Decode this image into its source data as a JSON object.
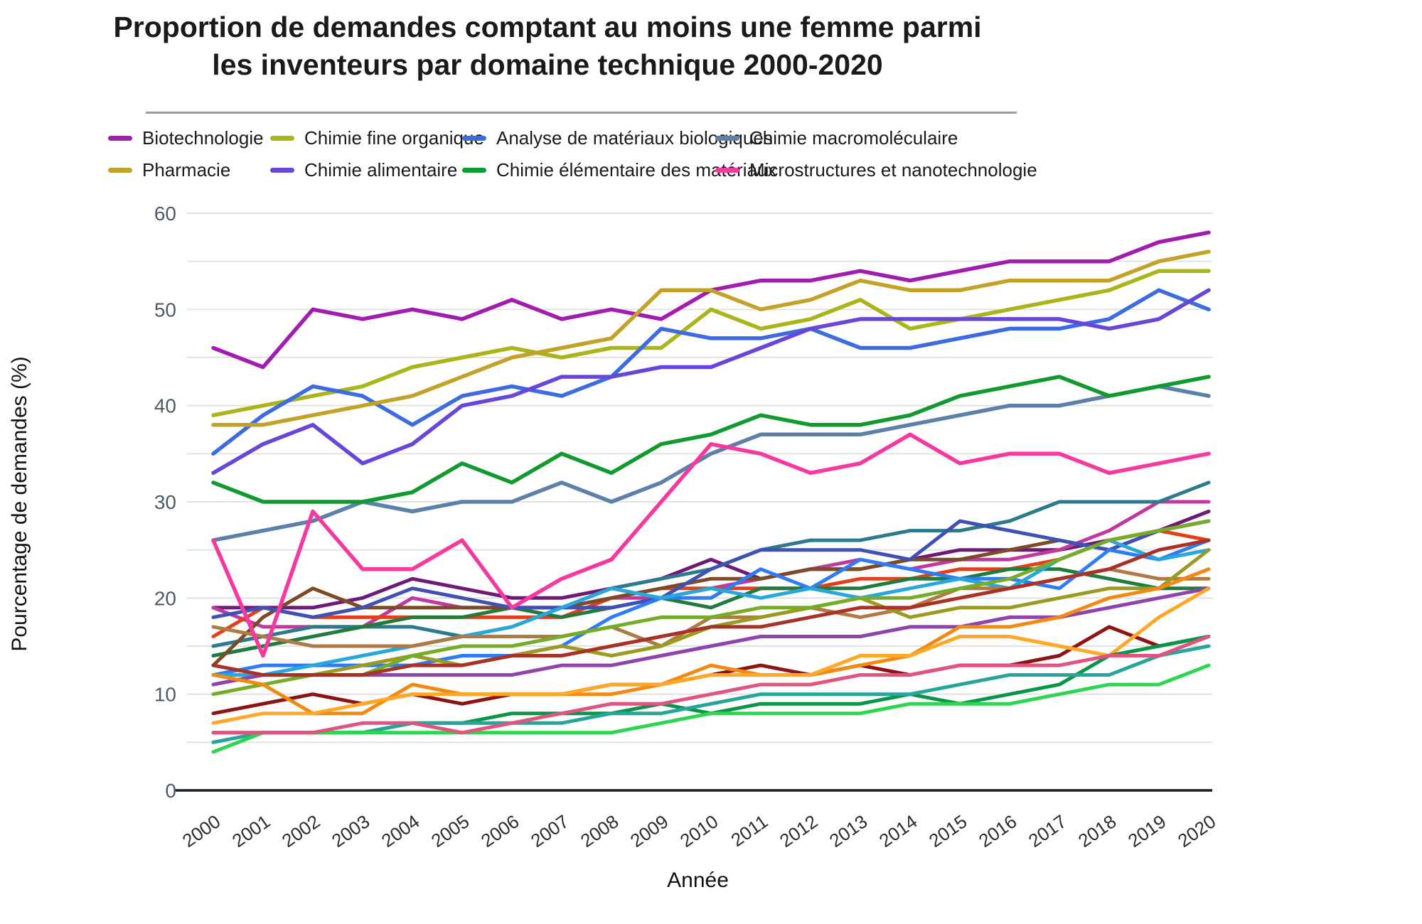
{
  "title": "Proportion de demandes comptant au moins une femme parmi les inventeurs par domaine technique 2000-2020",
  "axes": {
    "y_title": "Pourcentage de demandes (%)",
    "x_title": "Année",
    "y_ticks": [
      0,
      10,
      20,
      30,
      40,
      50,
      60
    ],
    "y_grid_step": 5,
    "y_min": 0,
    "y_max": 60
  },
  "chart_data": {
    "type": "line",
    "title": "Proportion de demandes comptant au moins une femme parmi les inventeurs par domaine technique 2000-2020",
    "xlabel": "Année",
    "ylabel": "Pourcentage de demandes (%)",
    "ylim": [
      0,
      60
    ],
    "grid": "horizontal every 5, light gray; x-axis baseline black",
    "legend_position": "top, two rows of four",
    "x": [
      2000,
      2001,
      2002,
      2003,
      2004,
      2005,
      2006,
      2007,
      2008,
      2009,
      2010,
      2011,
      2012,
      2013,
      2014,
      2015,
      2016,
      2017,
      2018,
      2019,
      2020
    ],
    "series": [
      {
        "id": "biotechnologie",
        "label": "Biotechnologie",
        "color": "#A21CAF",
        "in_legend": true,
        "values": [
          46,
          44,
          50,
          49,
          50,
          49,
          51,
          49,
          50,
          49,
          52,
          53,
          53,
          54,
          53,
          54,
          55,
          55,
          55,
          57,
          58
        ]
      },
      {
        "id": "chimie-fine-organique",
        "label": "Chimie fine organique",
        "color": "#A9B519",
        "in_legend": true,
        "values": [
          39,
          40,
          41,
          42,
          44,
          45,
          46,
          45,
          46,
          46,
          50,
          48,
          49,
          51,
          48,
          49,
          50,
          51,
          52,
          54,
          54
        ]
      },
      {
        "id": "analyse-materiaux-biologiques",
        "label": "Analyse de matériaux biologiques",
        "color": "#3D6BE0",
        "in_legend": true,
        "values": [
          35,
          39,
          42,
          41,
          38,
          41,
          42,
          41,
          43,
          48,
          47,
          47,
          48,
          46,
          46,
          47,
          48,
          48,
          49,
          52,
          50
        ]
      },
      {
        "id": "chimie-macromoleculaire",
        "label": "Chimie macromoléculaire",
        "color": "#5C80A8",
        "in_legend": true,
        "values": [
          26,
          27,
          28,
          30,
          29,
          30,
          30,
          32,
          30,
          32,
          35,
          37,
          37,
          37,
          38,
          39,
          40,
          40,
          41,
          42,
          41
        ]
      },
      {
        "id": "pharmacie",
        "label": "Pharmacie",
        "color": "#C2A227",
        "in_legend": true,
        "values": [
          38,
          38,
          39,
          40,
          41,
          43,
          45,
          46,
          47,
          52,
          52,
          50,
          51,
          53,
          52,
          52,
          53,
          53,
          53,
          55,
          56
        ]
      },
      {
        "id": "chimie-alimentaire",
        "label": "Chimie alimentaire",
        "color": "#6847D8",
        "in_legend": true,
        "values": [
          33,
          36,
          38,
          34,
          36,
          40,
          41,
          43,
          43,
          44,
          44,
          46,
          48,
          49,
          49,
          49,
          49,
          49,
          48,
          49,
          52
        ]
      },
      {
        "id": "chimie-elementaire-materiaux",
        "label": "Chimie élémentaire des matériaux",
        "color": "#119A30",
        "in_legend": true,
        "values": [
          32,
          30,
          30,
          30,
          31,
          34,
          32,
          35,
          33,
          36,
          37,
          39,
          38,
          38,
          39,
          41,
          42,
          43,
          41,
          42,
          43
        ]
      },
      {
        "id": "microstructures-nanotechnologie",
        "label": "Microstructures et nanotechnologie",
        "color": "#F5399E",
        "in_legend": true,
        "values": [
          26,
          14,
          29,
          23,
          23,
          26,
          19,
          22,
          24,
          30,
          36,
          35,
          33,
          34,
          37,
          34,
          35,
          35,
          33,
          34,
          35
        ]
      },
      {
        "id": "non-etiquete-1",
        "label": "",
        "color": "#701A78",
        "in_legend": false,
        "values": [
          19,
          19,
          19,
          20,
          22,
          21,
          20,
          20,
          21,
          22,
          24,
          22,
          23,
          23,
          24,
          25,
          25,
          25,
          26,
          27,
          29
        ]
      },
      {
        "id": "non-etiquete-2",
        "label": "",
        "color": "#C0399F",
        "in_legend": false,
        "values": [
          19,
          17,
          17,
          17,
          20,
          19,
          19,
          19,
          20,
          20,
          21,
          22,
          23,
          24,
          23,
          24,
          24,
          25,
          27,
          30,
          30
        ]
      },
      {
        "id": "non-etiquete-3",
        "label": "",
        "color": "#E2401B",
        "in_legend": false,
        "values": [
          16,
          19,
          18,
          18,
          18,
          18,
          18,
          18,
          20,
          21,
          21,
          21,
          21,
          22,
          22,
          23,
          23,
          24,
          26,
          27,
          26
        ]
      },
      {
        "id": "non-etiquete-4",
        "label": "",
        "color": "#2C7A8C",
        "in_legend": false,
        "values": [
          15,
          16,
          17,
          17,
          17,
          16,
          17,
          19,
          21,
          22,
          23,
          25,
          26,
          26,
          27,
          27,
          28,
          30,
          30,
          30,
          32
        ]
      },
      {
        "id": "non-etiquete-5",
        "label": "",
        "color": "#207B3C",
        "in_legend": false,
        "values": [
          14,
          15,
          16,
          17,
          18,
          18,
          19,
          18,
          19,
          20,
          19,
          21,
          21,
          21,
          22,
          22,
          23,
          23,
          22,
          21,
          21
        ]
      },
      {
        "id": "non-etiquete-6",
        "label": "",
        "color": "#7C4A26",
        "in_legend": false,
        "values": [
          13,
          18,
          21,
          19,
          19,
          19,
          19,
          19,
          20,
          21,
          22,
          22,
          23,
          23,
          24,
          24,
          25,
          26,
          25,
          27,
          28
        ]
      },
      {
        "id": "non-etiquete-7",
        "label": "",
        "color": "#3F51B5",
        "in_legend": false,
        "values": [
          18,
          19,
          18,
          19,
          21,
          20,
          19,
          19,
          19,
          20,
          23,
          25,
          25,
          25,
          24,
          28,
          27,
          26,
          25,
          27,
          28
        ]
      },
      {
        "id": "non-etiquete-8",
        "label": "",
        "color": "#2E7CF6",
        "in_legend": false,
        "values": [
          12,
          13,
          13,
          13,
          13,
          14,
          14,
          15,
          18,
          20,
          20,
          23,
          21,
          24,
          23,
          22,
          22,
          21,
          25,
          24,
          26
        ]
      },
      {
        "id": "non-etiquete-9",
        "label": "",
        "color": "#27A7DA",
        "in_legend": false,
        "values": [
          12,
          12,
          13,
          14,
          15,
          16,
          17,
          19,
          21,
          20,
          21,
          20,
          21,
          20,
          21,
          22,
          21,
          24,
          26,
          24,
          25
        ]
      },
      {
        "id": "non-etiquete-10",
        "label": "",
        "color": "#B07A45",
        "in_legend": false,
        "values": [
          17,
          16,
          15,
          15,
          15,
          16,
          16,
          16,
          17,
          15,
          18,
          18,
          19,
          18,
          19,
          21,
          21,
          22,
          23,
          22,
          22
        ]
      },
      {
        "id": "non-etiquete-11",
        "label": "",
        "color": "#9C9B21",
        "in_legend": false,
        "values": [
          11,
          12,
          12,
          13,
          14,
          13,
          14,
          15,
          14,
          15,
          17,
          18,
          19,
          20,
          18,
          19,
          19,
          20,
          21,
          21,
          25
        ]
      },
      {
        "id": "non-etiquete-12",
        "label": "",
        "color": "#76AC28",
        "in_legend": false,
        "values": [
          10,
          11,
          12,
          12,
          14,
          15,
          15,
          16,
          17,
          18,
          18,
          19,
          19,
          20,
          20,
          21,
          22,
          24,
          26,
          27,
          28
        ]
      },
      {
        "id": "non-etiquete-13",
        "label": "",
        "color": "#8E44AD",
        "in_legend": false,
        "values": [
          11,
          12,
          12,
          12,
          12,
          12,
          12,
          13,
          13,
          14,
          15,
          16,
          16,
          16,
          17,
          17,
          18,
          18,
          19,
          20,
          21
        ]
      },
      {
        "id": "non-etiquete-14",
        "label": "",
        "color": "#A93226",
        "in_legend": false,
        "values": [
          13,
          12,
          12,
          12,
          13,
          13,
          14,
          14,
          15,
          16,
          17,
          17,
          18,
          19,
          19,
          20,
          21,
          22,
          23,
          25,
          26
        ]
      },
      {
        "id": "non-etiquete-15",
        "label": "",
        "color": "#8E1414",
        "in_legend": false,
        "values": [
          8,
          9,
          10,
          9,
          10,
          9,
          10,
          10,
          11,
          11,
          12,
          13,
          12,
          13,
          12,
          13,
          13,
          14,
          17,
          15,
          16
        ]
      },
      {
        "id": "non-etiquete-16",
        "label": "",
        "color": "#F08A12",
        "in_legend": false,
        "values": [
          12,
          11,
          8,
          8,
          11,
          10,
          10,
          10,
          10,
          11,
          13,
          12,
          12,
          13,
          14,
          17,
          17,
          18,
          20,
          21,
          23
        ]
      },
      {
        "id": "non-etiquete-17",
        "label": "",
        "color": "#FFA726",
        "in_legend": false,
        "values": [
          7,
          8,
          8,
          9,
          10,
          10,
          10,
          10,
          11,
          11,
          12,
          12,
          12,
          14,
          14,
          16,
          16,
          15,
          14,
          18,
          21
        ]
      },
      {
        "id": "non-etiquete-18",
        "label": "",
        "color": "#0A9648",
        "in_legend": false,
        "values": [
          6,
          6,
          6,
          6,
          7,
          7,
          8,
          8,
          8,
          9,
          8,
          9,
          9,
          9,
          10,
          9,
          10,
          11,
          14,
          15,
          16
        ]
      },
      {
        "id": "non-etiquete-19",
        "label": "",
        "color": "#26A69A",
        "in_legend": false,
        "values": [
          5,
          6,
          6,
          6,
          7,
          7,
          7,
          7,
          8,
          8,
          9,
          10,
          10,
          10,
          10,
          11,
          12,
          12,
          12,
          14,
          15
        ]
      },
      {
        "id": "non-etiquete-20",
        "label": "",
        "color": "#2ED551",
        "in_legend": false,
        "values": [
          4,
          6,
          6,
          6,
          6,
          6,
          6,
          6,
          6,
          7,
          8,
          8,
          8,
          8,
          9,
          9,
          9,
          10,
          11,
          11,
          13
        ]
      },
      {
        "id": "non-etiquete-21",
        "label": "",
        "color": "#E0557F",
        "in_legend": false,
        "values": [
          6,
          6,
          6,
          7,
          7,
          6,
          7,
          8,
          9,
          9,
          10,
          11,
          11,
          12,
          12,
          13,
          13,
          13,
          14,
          14,
          16
        ]
      }
    ]
  }
}
